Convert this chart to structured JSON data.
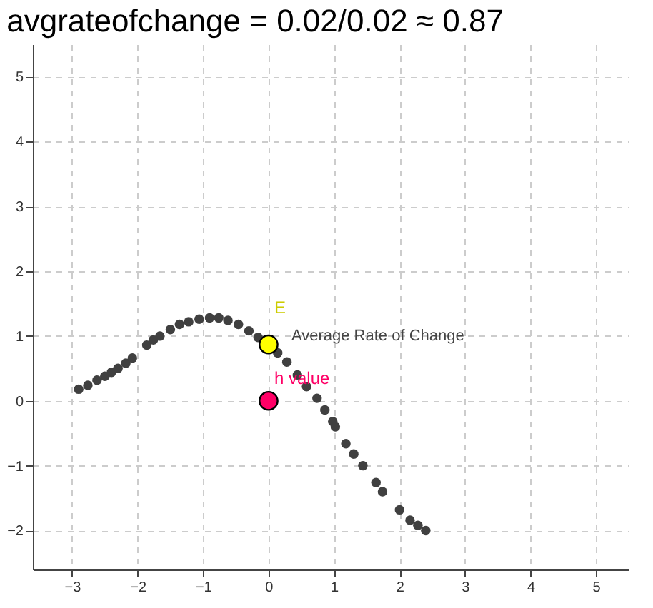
{
  "chart_data": {
    "type": "scatter",
    "title": "avgrateofchange = 0.02/0.02 ≈ 0.87",
    "x": [
      -2.9,
      -2.76,
      -2.62,
      -2.5,
      -2.4,
      -2.3,
      -2.18,
      -2.08,
      -1.86,
      -1.76,
      -1.66,
      -1.5,
      -1.36,
      -1.22,
      -1.06,
      -0.9,
      -0.76,
      -0.62,
      -0.46,
      -0.3,
      -0.16,
      0.14,
      0.28,
      0.44,
      0.58,
      0.74,
      0.86,
      0.98,
      1.02,
      1.18,
      1.3,
      1.44,
      1.64,
      1.74,
      2.0,
      2.16,
      2.28,
      2.4
    ],
    "series": [
      {
        "color": "#404040",
        "values": [
          0.18,
          0.24,
          0.32,
          0.38,
          0.44,
          0.5,
          0.58,
          0.66,
          0.86,
          0.94,
          1.0,
          1.1,
          1.18,
          1.22,
          1.26,
          1.28,
          1.28,
          1.24,
          1.18,
          1.08,
          0.98,
          0.74,
          0.6,
          0.4,
          0.22,
          0.04,
          -0.14,
          -0.32,
          -0.4,
          -0.66,
          -0.82,
          -1.0,
          -1.26,
          -1.4,
          -1.68,
          -1.84,
          -1.92,
          -2.0
        ]
      },
      {
        "name": "E",
        "color": "#ffff00",
        "x": [
          0
        ],
        "values": [
          0.87
        ]
      },
      {
        "name": "h value",
        "color": "#ff0066",
        "x": [
          0
        ],
        "values": [
          0
        ]
      }
    ],
    "annotations": [
      {
        "text": "Average Rate of Change",
        "x": 0,
        "y": 0.87
      }
    ],
    "xlim": [
      -3.6,
      5.5
    ],
    "ylim": [
      -2.6,
      5.5
    ],
    "xticks": [
      -3,
      -2,
      -1,
      0,
      1,
      2,
      3,
      4,
      5
    ],
    "yticks": [
      -2,
      -1,
      0,
      1,
      2,
      3,
      4,
      5
    ],
    "grid": true,
    "marker": "circle"
  }
}
